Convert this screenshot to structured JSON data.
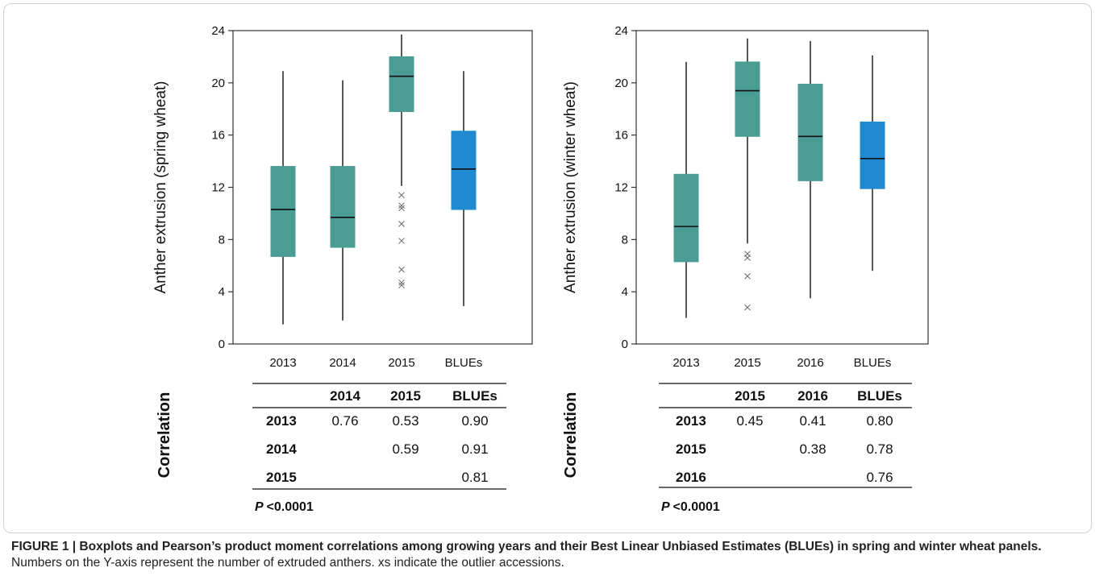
{
  "panels": [
    {
      "id": "spring",
      "chart_data": {
        "type": "box",
        "ylabel": "Anther extrusion (spring wheat)",
        "ylim": [
          0,
          24
        ],
        "yticks": [
          0,
          4,
          8,
          12,
          16,
          20,
          24
        ],
        "categories": [
          "2013",
          "2014",
          "2015",
          "BLUEs"
        ],
        "boxes": [
          {
            "category": "2013",
            "min": 1.5,
            "q1": 6.7,
            "median": 10.3,
            "q3": 13.6,
            "max": 20.9,
            "outliers": [],
            "color": "#4a9c95"
          },
          {
            "category": "2014",
            "min": 1.8,
            "q1": 7.4,
            "median": 9.7,
            "q3": 13.6,
            "max": 20.2,
            "outliers": [],
            "color": "#4a9c95"
          },
          {
            "category": "2015",
            "min": 12.1,
            "q1": 17.8,
            "median": 20.5,
            "q3": 22.0,
            "max": 23.7,
            "outliers": [
              11.4,
              10.6,
              10.4,
              9.2,
              7.9,
              5.7,
              4.7,
              4.5
            ],
            "color": "#4a9c95"
          },
          {
            "category": "BLUEs",
            "min": 2.9,
            "q1": 10.3,
            "median": 13.4,
            "q3": 16.3,
            "max": 20.9,
            "outliers": [],
            "color": "#1f8ad0"
          }
        ]
      },
      "correlation": {
        "label": "Correlation",
        "columns": [
          "",
          "2014",
          "2015",
          "BLUEs"
        ],
        "rows": [
          [
            "2013",
            "0.76",
            "0.53",
            "0.90"
          ],
          [
            "2014",
            "",
            "0.59",
            "0.91"
          ],
          [
            "2015",
            "",
            "",
            "0.81"
          ]
        ],
        "p_symbol": "P",
        "p_text": "<0.0001"
      }
    },
    {
      "id": "winter",
      "chart_data": {
        "type": "box",
        "ylabel": "Anther extrusion (winter wheat)",
        "ylim": [
          0,
          24
        ],
        "yticks": [
          0,
          4,
          8,
          12,
          16,
          20,
          24
        ],
        "categories": [
          "2013",
          "2015",
          "2016",
          "BLUEs"
        ],
        "boxes": [
          {
            "category": "2013",
            "min": 2.0,
            "q1": 6.3,
            "median": 9.0,
            "q3": 13.0,
            "max": 21.6,
            "outliers": [],
            "color": "#4a9c95"
          },
          {
            "category": "2015",
            "min": 7.7,
            "q1": 15.9,
            "median": 19.4,
            "q3": 21.6,
            "max": 23.4,
            "outliers": [
              6.9,
              6.6,
              5.2,
              2.8
            ],
            "color": "#4a9c95"
          },
          {
            "category": "2016",
            "min": 3.5,
            "q1": 12.5,
            "median": 15.9,
            "q3": 19.9,
            "max": 23.2,
            "outliers": [],
            "color": "#4a9c95"
          },
          {
            "category": "BLUEs",
            "min": 5.6,
            "q1": 11.9,
            "median": 14.2,
            "q3": 17.0,
            "max": 22.1,
            "outliers": [],
            "color": "#1f8ad0"
          }
        ]
      },
      "correlation": {
        "label": "Correlation",
        "columns": [
          "",
          "2015",
          "2016",
          "BLUEs"
        ],
        "rows": [
          [
            "2013",
            "0.45",
            "0.41",
            "0.80"
          ],
          [
            "2015",
            "",
            "0.38",
            "0.78"
          ],
          [
            "2016",
            "",
            "",
            "0.76"
          ]
        ],
        "p_symbol": "P",
        "p_text": "<0.0001"
      }
    }
  ],
  "caption": {
    "bold": "FIGURE 1 | Boxplots and Pearson’s product moment correlations among growing years and their Best Linear Unbiased Estimates (BLUEs) in spring and winter wheat panels.",
    "text": " Numbers on the Y-axis represent the number of extruded anthers. xs indicate the outlier accessions."
  }
}
